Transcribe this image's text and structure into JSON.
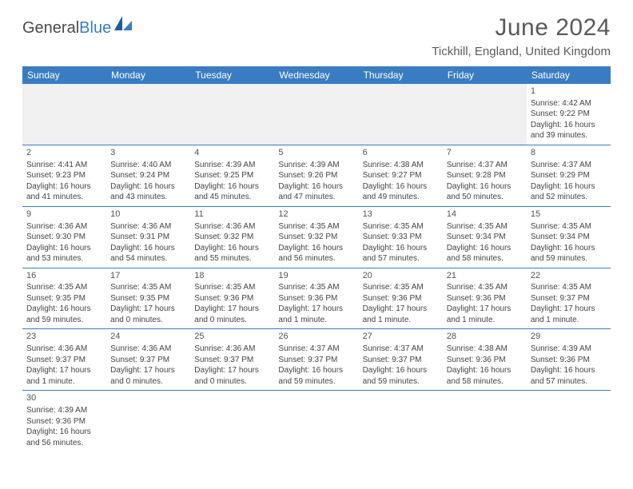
{
  "brand": {
    "part1": "General",
    "part2": "Blue"
  },
  "header": {
    "title": "June 2024",
    "location": "Tickhill, England, United Kingdom"
  },
  "colors": {
    "header_bg": "#3a7cc2",
    "header_text": "#ffffff",
    "grid_line": "#3a7cc2",
    "text": "#444444",
    "title_text": "#5a5a5a"
  },
  "weekdays": [
    "Sunday",
    "Monday",
    "Tuesday",
    "Wednesday",
    "Thursday",
    "Friday",
    "Saturday"
  ],
  "weeks": [
    [
      null,
      null,
      null,
      null,
      null,
      null,
      {
        "day": "1",
        "sunrise": "Sunrise: 4:42 AM",
        "sunset": "Sunset: 9:22 PM",
        "dl1": "Daylight: 16 hours",
        "dl2": "and 39 minutes."
      }
    ],
    [
      {
        "day": "2",
        "sunrise": "Sunrise: 4:41 AM",
        "sunset": "Sunset: 9:23 PM",
        "dl1": "Daylight: 16 hours",
        "dl2": "and 41 minutes."
      },
      {
        "day": "3",
        "sunrise": "Sunrise: 4:40 AM",
        "sunset": "Sunset: 9:24 PM",
        "dl1": "Daylight: 16 hours",
        "dl2": "and 43 minutes."
      },
      {
        "day": "4",
        "sunrise": "Sunrise: 4:39 AM",
        "sunset": "Sunset: 9:25 PM",
        "dl1": "Daylight: 16 hours",
        "dl2": "and 45 minutes."
      },
      {
        "day": "5",
        "sunrise": "Sunrise: 4:39 AM",
        "sunset": "Sunset: 9:26 PM",
        "dl1": "Daylight: 16 hours",
        "dl2": "and 47 minutes."
      },
      {
        "day": "6",
        "sunrise": "Sunrise: 4:38 AM",
        "sunset": "Sunset: 9:27 PM",
        "dl1": "Daylight: 16 hours",
        "dl2": "and 49 minutes."
      },
      {
        "day": "7",
        "sunrise": "Sunrise: 4:37 AM",
        "sunset": "Sunset: 9:28 PM",
        "dl1": "Daylight: 16 hours",
        "dl2": "and 50 minutes."
      },
      {
        "day": "8",
        "sunrise": "Sunrise: 4:37 AM",
        "sunset": "Sunset: 9:29 PM",
        "dl1": "Daylight: 16 hours",
        "dl2": "and 52 minutes."
      }
    ],
    [
      {
        "day": "9",
        "sunrise": "Sunrise: 4:36 AM",
        "sunset": "Sunset: 9:30 PM",
        "dl1": "Daylight: 16 hours",
        "dl2": "and 53 minutes."
      },
      {
        "day": "10",
        "sunrise": "Sunrise: 4:36 AM",
        "sunset": "Sunset: 9:31 PM",
        "dl1": "Daylight: 16 hours",
        "dl2": "and 54 minutes."
      },
      {
        "day": "11",
        "sunrise": "Sunrise: 4:36 AM",
        "sunset": "Sunset: 9:32 PM",
        "dl1": "Daylight: 16 hours",
        "dl2": "and 55 minutes."
      },
      {
        "day": "12",
        "sunrise": "Sunrise: 4:35 AM",
        "sunset": "Sunset: 9:32 PM",
        "dl1": "Daylight: 16 hours",
        "dl2": "and 56 minutes."
      },
      {
        "day": "13",
        "sunrise": "Sunrise: 4:35 AM",
        "sunset": "Sunset: 9:33 PM",
        "dl1": "Daylight: 16 hours",
        "dl2": "and 57 minutes."
      },
      {
        "day": "14",
        "sunrise": "Sunrise: 4:35 AM",
        "sunset": "Sunset: 9:34 PM",
        "dl1": "Daylight: 16 hours",
        "dl2": "and 58 minutes."
      },
      {
        "day": "15",
        "sunrise": "Sunrise: 4:35 AM",
        "sunset": "Sunset: 9:34 PM",
        "dl1": "Daylight: 16 hours",
        "dl2": "and 59 minutes."
      }
    ],
    [
      {
        "day": "16",
        "sunrise": "Sunrise: 4:35 AM",
        "sunset": "Sunset: 9:35 PM",
        "dl1": "Daylight: 16 hours",
        "dl2": "and 59 minutes."
      },
      {
        "day": "17",
        "sunrise": "Sunrise: 4:35 AM",
        "sunset": "Sunset: 9:35 PM",
        "dl1": "Daylight: 17 hours",
        "dl2": "and 0 minutes."
      },
      {
        "day": "18",
        "sunrise": "Sunrise: 4:35 AM",
        "sunset": "Sunset: 9:36 PM",
        "dl1": "Daylight: 17 hours",
        "dl2": "and 0 minutes."
      },
      {
        "day": "19",
        "sunrise": "Sunrise: 4:35 AM",
        "sunset": "Sunset: 9:36 PM",
        "dl1": "Daylight: 17 hours",
        "dl2": "and 1 minute."
      },
      {
        "day": "20",
        "sunrise": "Sunrise: 4:35 AM",
        "sunset": "Sunset: 9:36 PM",
        "dl1": "Daylight: 17 hours",
        "dl2": "and 1 minute."
      },
      {
        "day": "21",
        "sunrise": "Sunrise: 4:35 AM",
        "sunset": "Sunset: 9:36 PM",
        "dl1": "Daylight: 17 hours",
        "dl2": "and 1 minute."
      },
      {
        "day": "22",
        "sunrise": "Sunrise: 4:35 AM",
        "sunset": "Sunset: 9:37 PM",
        "dl1": "Daylight: 17 hours",
        "dl2": "and 1 minute."
      }
    ],
    [
      {
        "day": "23",
        "sunrise": "Sunrise: 4:36 AM",
        "sunset": "Sunset: 9:37 PM",
        "dl1": "Daylight: 17 hours",
        "dl2": "and 1 minute."
      },
      {
        "day": "24",
        "sunrise": "Sunrise: 4:36 AM",
        "sunset": "Sunset: 9:37 PM",
        "dl1": "Daylight: 17 hours",
        "dl2": "and 0 minutes."
      },
      {
        "day": "25",
        "sunrise": "Sunrise: 4:36 AM",
        "sunset": "Sunset: 9:37 PM",
        "dl1": "Daylight: 17 hours",
        "dl2": "and 0 minutes."
      },
      {
        "day": "26",
        "sunrise": "Sunrise: 4:37 AM",
        "sunset": "Sunset: 9:37 PM",
        "dl1": "Daylight: 16 hours",
        "dl2": "and 59 minutes."
      },
      {
        "day": "27",
        "sunrise": "Sunrise: 4:37 AM",
        "sunset": "Sunset: 9:37 PM",
        "dl1": "Daylight: 16 hours",
        "dl2": "and 59 minutes."
      },
      {
        "day": "28",
        "sunrise": "Sunrise: 4:38 AM",
        "sunset": "Sunset: 9:36 PM",
        "dl1": "Daylight: 16 hours",
        "dl2": "and 58 minutes."
      },
      {
        "day": "29",
        "sunrise": "Sunrise: 4:39 AM",
        "sunset": "Sunset: 9:36 PM",
        "dl1": "Daylight: 16 hours",
        "dl2": "and 57 minutes."
      }
    ],
    [
      {
        "day": "30",
        "sunrise": "Sunrise: 4:39 AM",
        "sunset": "Sunset: 9:36 PM",
        "dl1": "Daylight: 16 hours",
        "dl2": "and 56 minutes."
      },
      null,
      null,
      null,
      null,
      null,
      null
    ]
  ]
}
